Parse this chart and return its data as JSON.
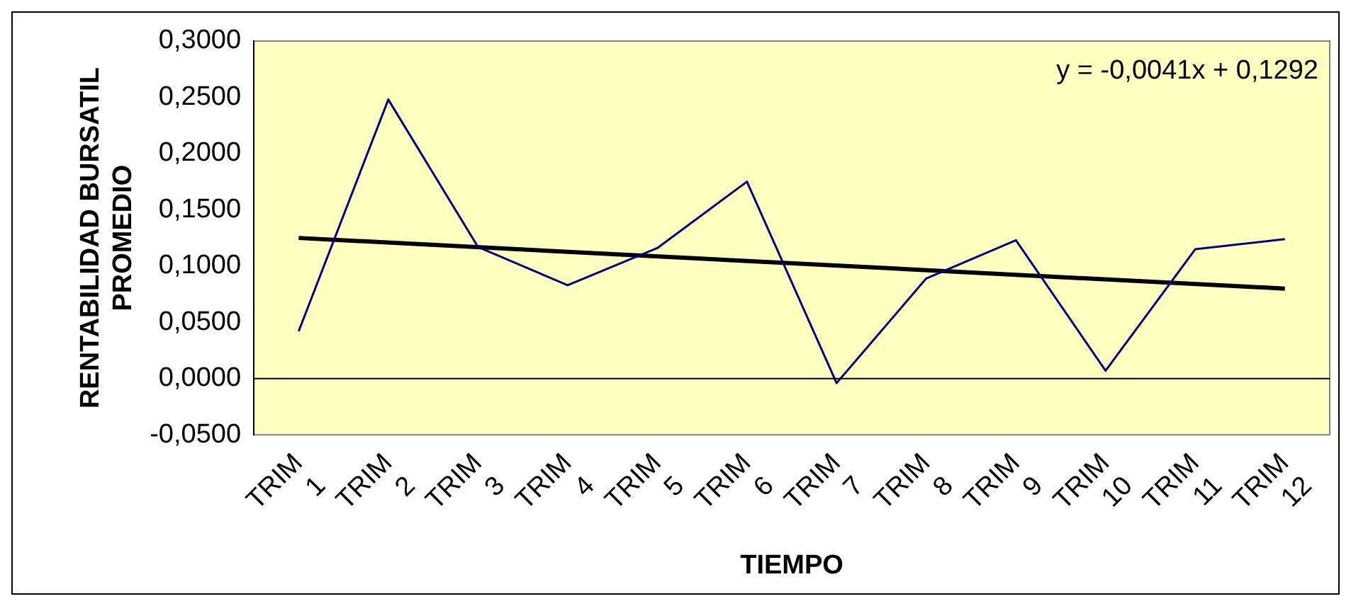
{
  "chart_data": {
    "type": "line",
    "xlabel": "TIEMPO",
    "ylabel": "RENTABILIDAD BURSATIL PROMEDIO",
    "categories": [
      "TRIM 1",
      "TRIM 2",
      "TRIM 3",
      "TRIM 4",
      "TRIM 5",
      "TRIM 6",
      "TRIM 7",
      "TRIM 8",
      "TRIM 9",
      "TRIM 10",
      "TRIM 11",
      "TRIM 12"
    ],
    "series": [
      {
        "color": "#000080",
        "values": [
          0.042,
          0.248,
          0.117,
          0.083,
          0.116,
          0.175,
          -0.004,
          0.089,
          0.123,
          0.007,
          0.115,
          0.124
        ]
      },
      {
        "type": "line",
        "color": "#000000",
        "x": [
          "TRIM 1",
          "TRIM 12"
        ],
        "values": [
          0.125,
          0.08
        ]
      }
    ],
    "ylim": [
      -0.05,
      0.3
    ],
    "yticks": [
      {
        "value": -0.05,
        "label": "-0,0500"
      },
      {
        "value": 0,
        "label": "0,0000"
      },
      {
        "value": 0.05,
        "label": "0,0500"
      },
      {
        "value": 0.1,
        "label": "0,1000"
      },
      {
        "value": 0.15,
        "label": "0,1500"
      },
      {
        "value": 0.2,
        "label": "0,2000"
      },
      {
        "value": 0.25,
        "label": "0,2500"
      },
      {
        "value": 0.3,
        "label": "0,3000"
      }
    ],
    "ref_lines": [
      {
        "axis": "y",
        "value": 0,
        "color": "#000000"
      }
    ],
    "annotations": [
      "y = -0,0041x + 0,1292"
    ],
    "grid": false,
    "legend": false,
    "marker": "none",
    "line_style": "solid"
  }
}
